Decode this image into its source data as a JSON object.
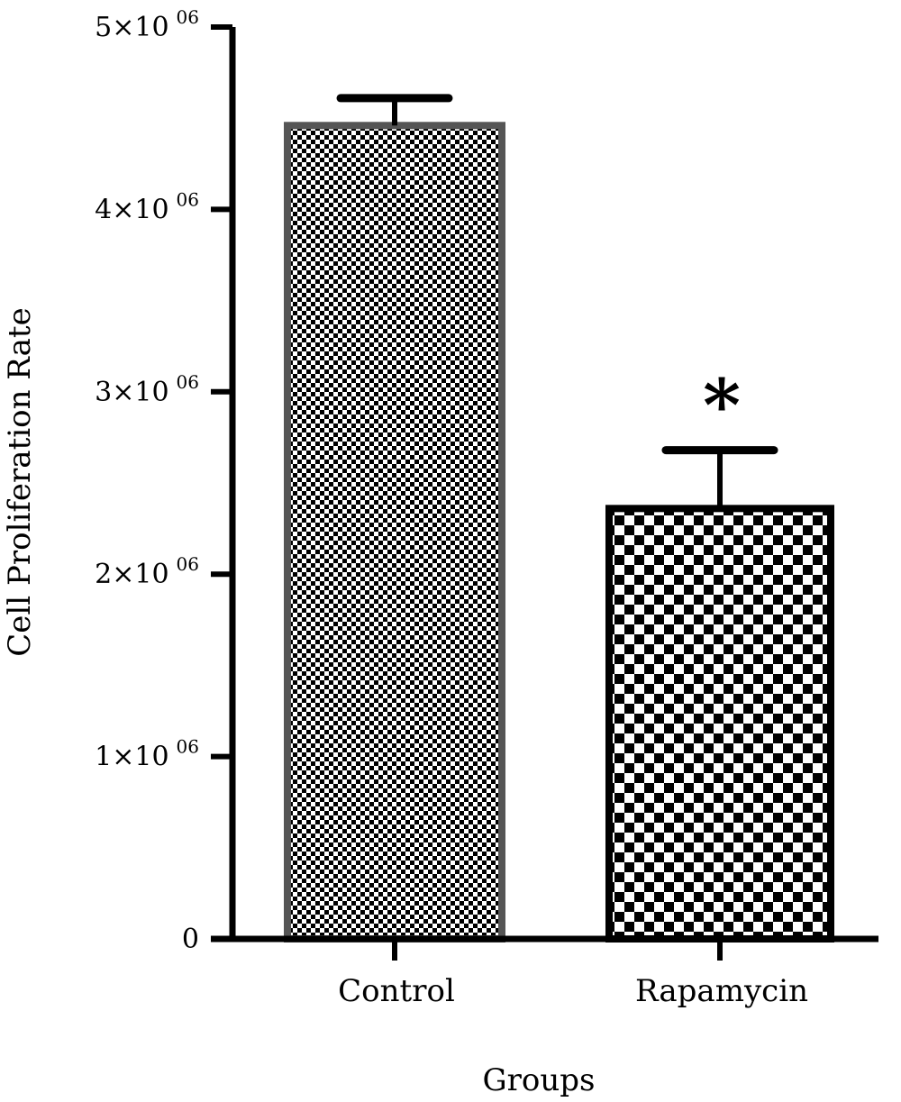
{
  "chart_data": {
    "type": "bar",
    "categories": [
      "Control",
      "Rapamycin"
    ],
    "values": [
      4460000,
      2360000
    ],
    "errors": [
      150000,
      320000
    ],
    "annotations": [
      "",
      "*"
    ],
    "ylabel": "Cell Proliferation Rate",
    "xlabel": "Groups",
    "ylim": [
      0,
      5000000
    ],
    "yticks": [
      {
        "value": 0,
        "mantissa": "0",
        "exponent": ""
      },
      {
        "value": 1000000,
        "mantissa": "1×10",
        "exponent": "06"
      },
      {
        "value": 2000000,
        "mantissa": "2×10",
        "exponent": "06"
      },
      {
        "value": 3000000,
        "mantissa": "3×10",
        "exponent": "06"
      },
      {
        "value": 4000000,
        "mantissa": "4×10",
        "exponent": "06"
      },
      {
        "value": 5000000,
        "mantissa": "5×10",
        "exponent": "06"
      }
    ],
    "bar_patterns": [
      "fine-checker",
      "coarse-checker"
    ],
    "bar_edge_colors": [
      "#555555",
      "#000000"
    ],
    "grid": false,
    "legend": "none"
  }
}
